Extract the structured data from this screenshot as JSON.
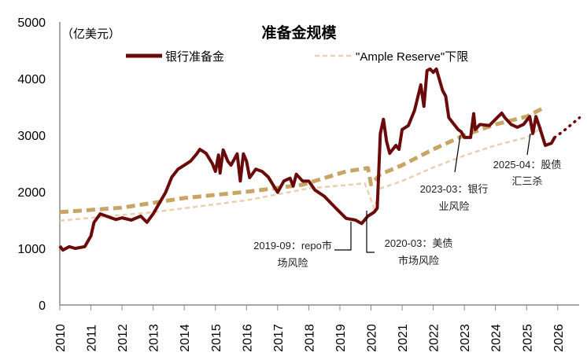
{
  "chart_data": {
    "type": "line",
    "title": "准备金规模",
    "unit_label": "（亿美元）",
    "ylim": [
      0,
      5000
    ],
    "yticks": [
      "0",
      "1000",
      "2000",
      "3000",
      "4000",
      "5000"
    ],
    "xlim": [
      2010,
      2026.7
    ],
    "xticks": [
      "2010",
      "2011",
      "2012",
      "2013",
      "2014",
      "2015",
      "2016",
      "2017",
      "2018",
      "2019",
      "2020",
      "2021",
      "2022",
      "2023",
      "2024",
      "2025",
      "2026"
    ],
    "legend": [
      "银行准备金",
      "\"Ample Reserve\"下限"
    ],
    "legend_position": "top",
    "grid": false,
    "colors": {
      "reserves": "#6b0a0a",
      "ample_upper": "#c8a465",
      "ample_lower": "#e8cfae"
    },
    "series": [
      {
        "name": "银行准备金",
        "style": "solid",
        "points": [
          [
            2010,
            1040
          ],
          [
            2010.1,
            970
          ],
          [
            2010.3,
            1030
          ],
          [
            2010.5,
            1000
          ],
          [
            2010.8,
            1030
          ],
          [
            2011,
            1220
          ],
          [
            2011.1,
            1460
          ],
          [
            2011.3,
            1610
          ],
          [
            2011.5,
            1570
          ],
          [
            2011.8,
            1510
          ],
          [
            2012,
            1540
          ],
          [
            2012.3,
            1500
          ],
          [
            2012.6,
            1570
          ],
          [
            2012.8,
            1460
          ],
          [
            2013,
            1610
          ],
          [
            2013.2,
            1800
          ],
          [
            2013.4,
            1990
          ],
          [
            2013.6,
            2260
          ],
          [
            2013.8,
            2400
          ],
          [
            2014,
            2470
          ],
          [
            2014.2,
            2540
          ],
          [
            2014.4,
            2670
          ],
          [
            2014.5,
            2750
          ],
          [
            2014.7,
            2680
          ],
          [
            2014.9,
            2500
          ],
          [
            2015,
            2360
          ],
          [
            2015.1,
            2650
          ],
          [
            2015.15,
            2330
          ],
          [
            2015.25,
            2740
          ],
          [
            2015.4,
            2540
          ],
          [
            2015.5,
            2470
          ],
          [
            2015.7,
            2670
          ],
          [
            2015.8,
            2190
          ],
          [
            2015.9,
            2670
          ],
          [
            2016,
            2540
          ],
          [
            2016.1,
            2250
          ],
          [
            2016.3,
            2400
          ],
          [
            2016.5,
            2360
          ],
          [
            2016.7,
            2260
          ],
          [
            2016.9,
            2080
          ],
          [
            2017,
            1990
          ],
          [
            2017.2,
            2190
          ],
          [
            2017.4,
            2240
          ],
          [
            2017.5,
            2100
          ],
          [
            2017.6,
            2310
          ],
          [
            2017.8,
            2190
          ],
          [
            2018,
            2190
          ],
          [
            2018.2,
            2030
          ],
          [
            2018.5,
            1920
          ],
          [
            2018.8,
            1750
          ],
          [
            2019,
            1640
          ],
          [
            2019.2,
            1530
          ],
          [
            2019.5,
            1500
          ],
          [
            2019.7,
            1440
          ],
          [
            2019.9,
            1570
          ],
          [
            2020.1,
            1640
          ],
          [
            2020.2,
            1710
          ],
          [
            2020.3,
            3030
          ],
          [
            2020.4,
            3280
          ],
          [
            2020.5,
            2890
          ],
          [
            2020.6,
            2680
          ],
          [
            2020.8,
            2820
          ],
          [
            2020.9,
            2750
          ],
          [
            2021,
            3100
          ],
          [
            2021.2,
            3170
          ],
          [
            2021.4,
            3440
          ],
          [
            2021.6,
            3890
          ],
          [
            2021.7,
            3510
          ],
          [
            2021.8,
            4140
          ],
          [
            2021.9,
            4170
          ],
          [
            2022,
            4110
          ],
          [
            2022.1,
            4170
          ],
          [
            2022.3,
            3790
          ],
          [
            2022.4,
            3690
          ],
          [
            2022.5,
            3310
          ],
          [
            2022.6,
            3240
          ],
          [
            2022.8,
            3100
          ],
          [
            2022.9,
            3060
          ],
          [
            2023,
            2960
          ],
          [
            2023.2,
            2960
          ],
          [
            2023.3,
            3380
          ],
          [
            2023.35,
            3100
          ],
          [
            2023.5,
            3190
          ],
          [
            2023.8,
            3170
          ],
          [
            2024,
            3280
          ],
          [
            2024.2,
            3390
          ],
          [
            2024.3,
            3310
          ],
          [
            2024.5,
            3190
          ],
          [
            2024.7,
            3140
          ],
          [
            2024.9,
            3190
          ],
          [
            2025.1,
            3330
          ],
          [
            2025.2,
            3030
          ],
          [
            2025.3,
            3330
          ],
          [
            2025.4,
            3170
          ],
          [
            2025.6,
            2820
          ],
          [
            2025.8,
            2860
          ],
          [
            2025.9,
            2960
          ]
        ]
      },
      {
        "style": "dotted-projection",
        "points": [
          [
            2025.9,
            2960
          ],
          [
            2026.2,
            3080
          ],
          [
            2026.7,
            3310
          ]
        ]
      },
      {
        "style": "dashed-bold",
        "points": [
          [
            2010,
            1640
          ],
          [
            2012,
            1720
          ],
          [
            2014,
            1890
          ],
          [
            2016,
            2000
          ],
          [
            2017.8,
            2125
          ],
          [
            2019.2,
            2360
          ],
          [
            2019.9,
            2420
          ],
          [
            2020,
            2130
          ],
          [
            2020.3,
            2310
          ],
          [
            2021,
            2470
          ],
          [
            2022,
            2750
          ],
          [
            2023,
            3000
          ],
          [
            2024,
            3190
          ],
          [
            2025,
            3330
          ],
          [
            2025.5,
            3470
          ]
        ]
      },
      {
        "name": "\"Ample Reserve\"下限",
        "style": "dashed-light",
        "points": [
          [
            2010,
            1490
          ],
          [
            2013,
            1640
          ],
          [
            2016,
            1850
          ],
          [
            2018,
            2060
          ],
          [
            2019.8,
            2150
          ],
          [
            2020.1,
            1710
          ],
          [
            2020.3,
            2060
          ],
          [
            2021,
            2190
          ],
          [
            2022,
            2430
          ],
          [
            2023,
            2640
          ],
          [
            2024,
            2820
          ],
          [
            2025,
            2960
          ],
          [
            2025.5,
            3140
          ]
        ]
      }
    ],
    "annotations": [
      {
        "lines": [
          "2019-09：repo市",
          "场风险"
        ]
      },
      {
        "lines": [
          "2020-03：美债",
          "市场风险"
        ]
      },
      {
        "lines": [
          "2023-03：银行",
          "业风险"
        ]
      },
      {
        "lines": [
          "2025-04：股债",
          "汇三杀"
        ]
      }
    ]
  }
}
